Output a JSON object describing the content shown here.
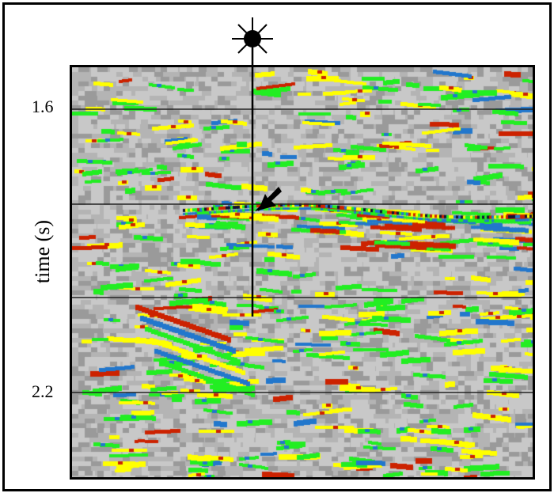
{
  "yaxis": {
    "label": "time (s)",
    "ticks": [
      "1.6",
      "2.2"
    ]
  },
  "icons": {
    "source_marker": "starburst-icon",
    "pointer": "arrow-icon"
  },
  "palette": {
    "background": "#b4b4b4",
    "light_gray": "#c8c8c8",
    "dark_gray": "#9a9a9a",
    "yellow": "#ffff00",
    "green": "#22ee22",
    "blue": "#2277cc",
    "red": "#cc2200",
    "dark": "#111133"
  }
}
